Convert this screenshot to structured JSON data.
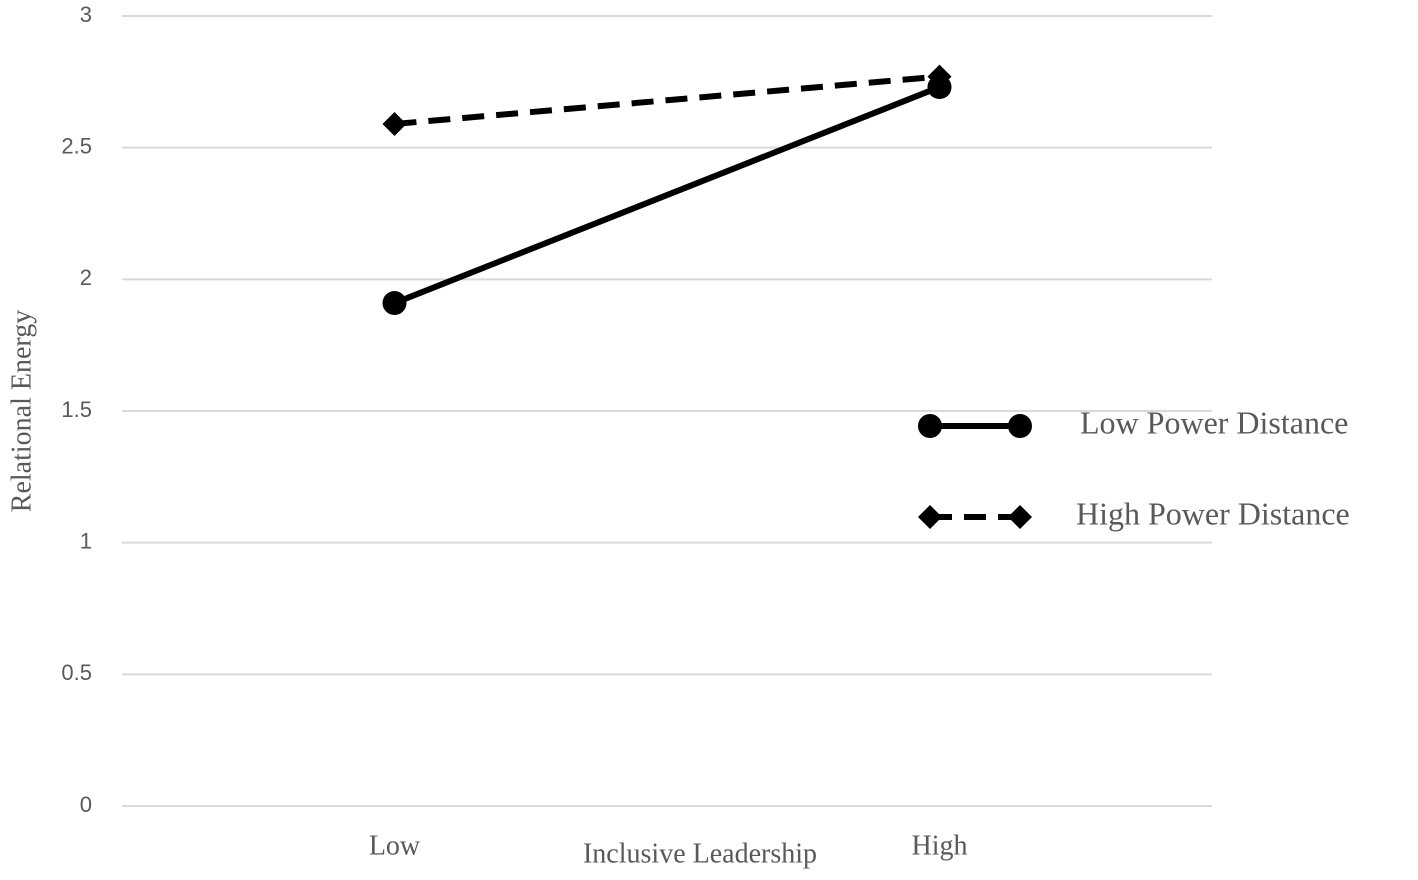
{
  "chart_data": {
    "type": "line",
    "x_label": "Inclusive Leadership",
    "y_label": "Relational Energy",
    "categories": [
      "Low",
      "High"
    ],
    "series": [
      {
        "name": "Low Power Distance",
        "color": "#000000",
        "marker": "circle",
        "dash": "solid",
        "values": [
          1.91,
          2.73
        ]
      },
      {
        "name": "High Power Distance",
        "color": "#000000",
        "marker": "diamond",
        "dash": "dashed",
        "values": [
          2.59,
          2.77
        ]
      }
    ],
    "ylim": [
      0,
      3
    ],
    "yticks": [
      0,
      0.5,
      1,
      1.5,
      2,
      2.5,
      3
    ],
    "grid": true,
    "legend": "right"
  }
}
